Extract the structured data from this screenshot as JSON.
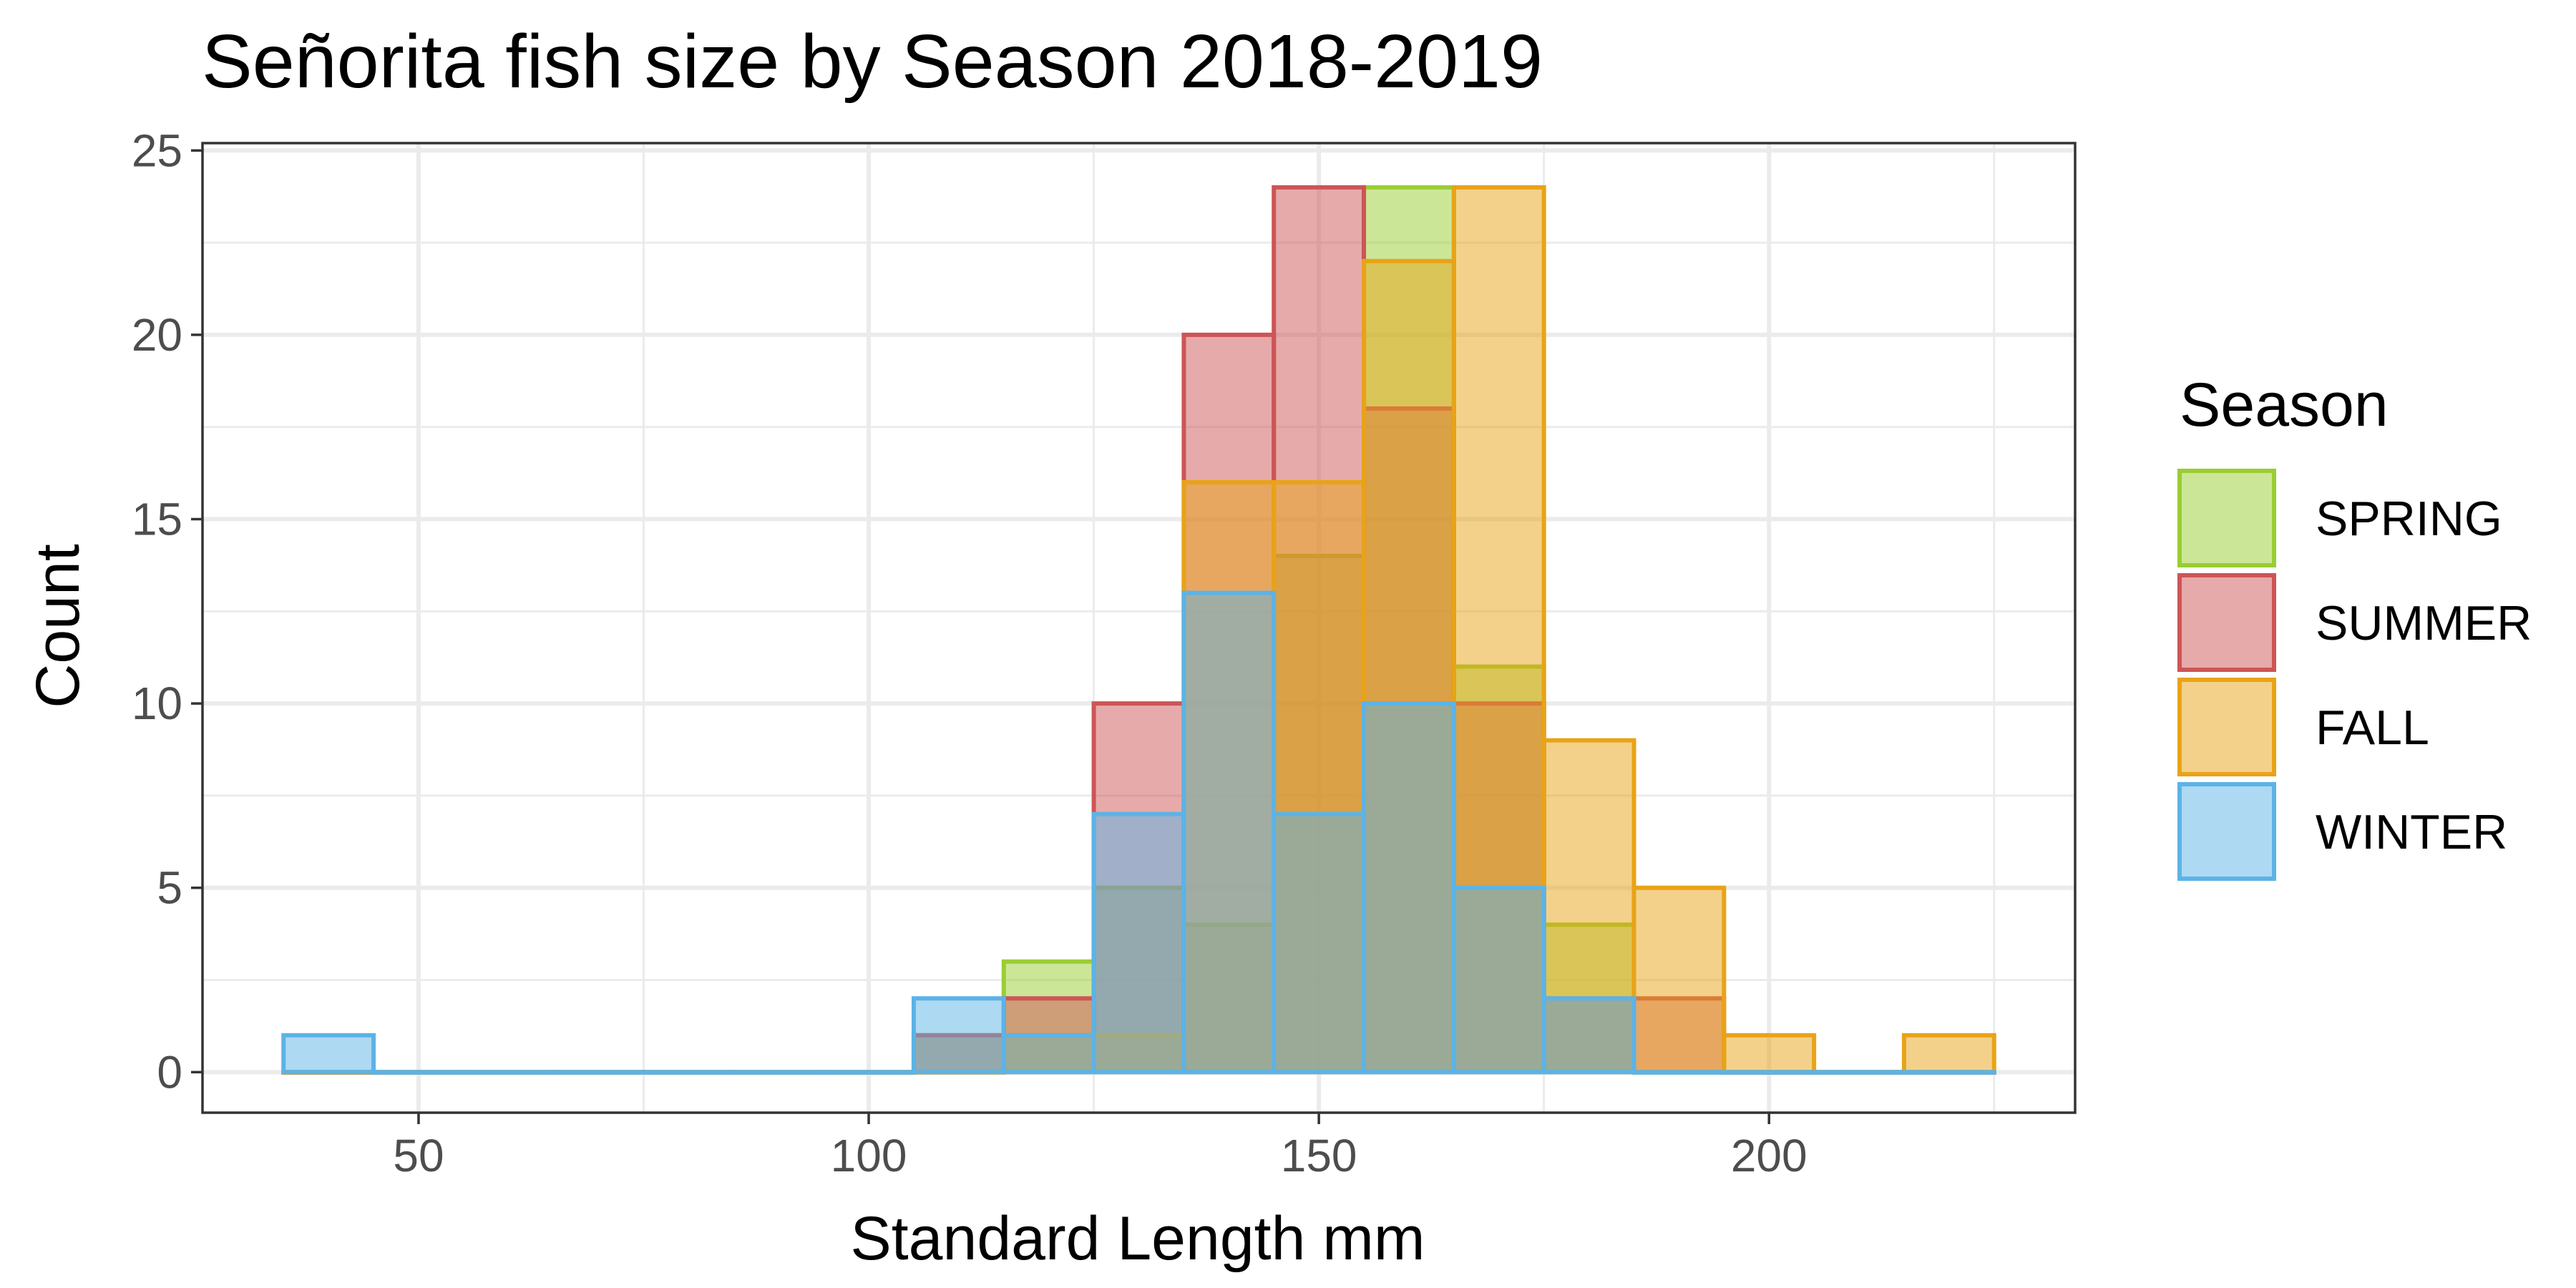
{
  "chart_data": {
    "type": "bar",
    "subtype": "overlapping histogram",
    "title": "Señorita fish size by Season 2018-2019",
    "xlabel": "Standard Length mm",
    "ylabel": "Count",
    "xlim": [
      26,
      234
    ],
    "ylim": [
      -1.1,
      25.2
    ],
    "x_ticks": [
      50,
      100,
      150,
      200
    ],
    "x_tick_labels": [
      "50",
      "100",
      "150",
      "200"
    ],
    "y_ticks": [
      0,
      5,
      10,
      15,
      20,
      25
    ],
    "y_tick_labels": [
      "0",
      "5",
      "10",
      "15",
      "20",
      "25"
    ],
    "grid": true,
    "bin_width": 10,
    "bin_centers": [
      40,
      50,
      60,
      70,
      80,
      90,
      100,
      110,
      120,
      130,
      140,
      150,
      160,
      170,
      180,
      190,
      200,
      210,
      220
    ],
    "legend_title": "Season",
    "legend_position": "right",
    "series": [
      {
        "name": "SPRING",
        "fill": "#9acd32",
        "stroke": "#9acd32",
        "values": [
          0,
          0,
          0,
          0,
          0,
          0,
          0,
          1,
          3,
          5,
          4,
          14,
          24,
          11,
          4,
          0,
          0,
          0,
          0
        ]
      },
      {
        "name": "SUMMER",
        "fill": "#cd5555",
        "stroke": "#cd5555",
        "values": [
          0,
          0,
          0,
          0,
          0,
          0,
          0,
          1,
          2,
          10,
          20,
          24,
          18,
          10,
          2,
          2,
          0,
          0,
          0
        ]
      },
      {
        "name": "FALL",
        "fill": "#e8a317",
        "stroke": "#e8a317",
        "values": [
          0,
          0,
          0,
          0,
          0,
          0,
          0,
          0,
          1,
          1,
          16,
          16,
          22,
          24,
          9,
          5,
          1,
          0,
          1
        ]
      },
      {
        "name": "WINTER",
        "fill": "#5cb3e6",
        "stroke": "#5cb3e6",
        "values": [
          1,
          0,
          0,
          0,
          0,
          0,
          0,
          2,
          1,
          7,
          13,
          7,
          10,
          5,
          2,
          0,
          0,
          0,
          0
        ]
      }
    ]
  }
}
